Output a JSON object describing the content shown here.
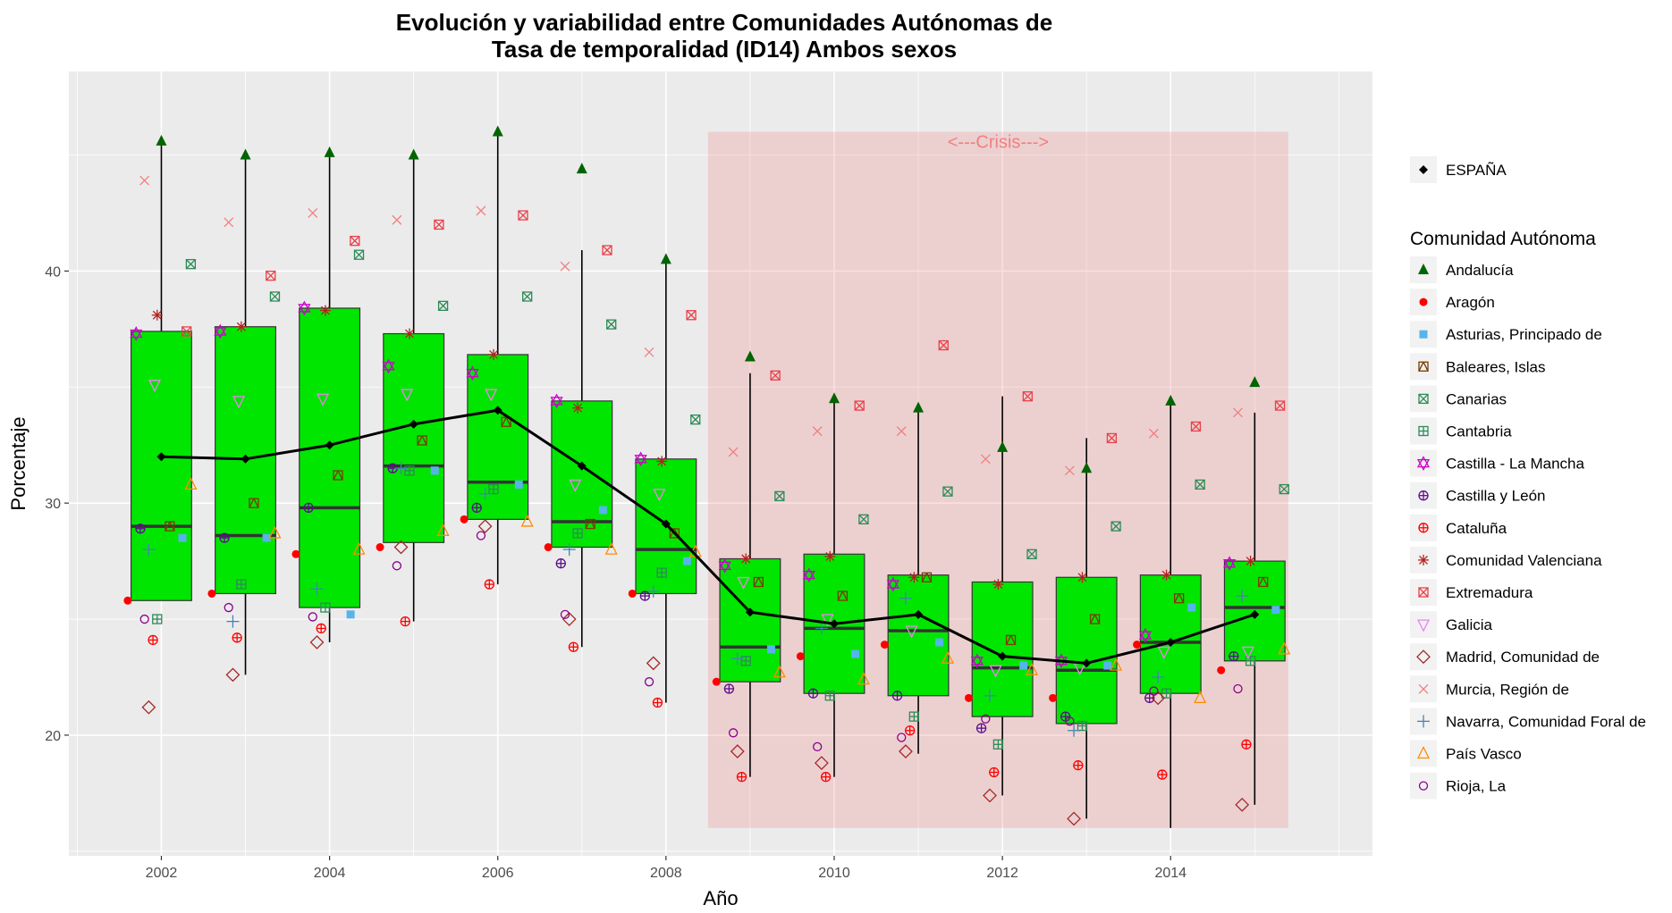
{
  "chart_data": {
    "type": "boxplot",
    "title_line1": "Evolución y variabilidad entre Comunidades Autónomas de",
    "title_line2": "Tasa de temporalidad (ID14) Ambos sexos",
    "xlabel": "Año",
    "ylabel": "Porcentaje",
    "xlim": [
      2000.9,
      2016.4
    ],
    "ylim": [
      14.8,
      48.6
    ],
    "x_ticks": [
      2002,
      2004,
      2006,
      2008,
      2010,
      2012,
      2014
    ],
    "y_ticks": [
      20,
      30,
      40
    ],
    "grid": true,
    "legend_position": "right",
    "crisis": {
      "label": "<---Crisis--->",
      "x_start": 2008.5,
      "x_end": 2015.4,
      "y_min": 16,
      "y_max": 46,
      "color": "#f08080"
    },
    "box_color": "#00e600",
    "boxes": [
      {
        "year": 2002,
        "whisker_low": 25.8,
        "q1": 25.8,
        "median": 29.0,
        "q3": 37.4,
        "whisker_high": 45.6
      },
      {
        "year": 2003,
        "whisker_low": 22.6,
        "q1": 26.1,
        "median": 28.6,
        "q3": 37.6,
        "whisker_high": 45.0
      },
      {
        "year": 2004,
        "whisker_low": 24.0,
        "q1": 25.5,
        "median": 29.8,
        "q3": 38.4,
        "whisker_high": 45.1
      },
      {
        "year": 2005,
        "whisker_low": 24.9,
        "q1": 28.3,
        "median": 31.6,
        "q3": 37.3,
        "whisker_high": 45.0
      },
      {
        "year": 2006,
        "whisker_low": 26.5,
        "q1": 29.3,
        "median": 30.9,
        "q3": 36.4,
        "whisker_high": 46.0
      },
      {
        "year": 2007,
        "whisker_low": 23.8,
        "q1": 28.1,
        "median": 29.2,
        "q3": 34.4,
        "whisker_high": 40.9
      },
      {
        "year": 2008,
        "whisker_low": 21.4,
        "q1": 26.1,
        "median": 28.0,
        "q3": 31.9,
        "whisker_high": 40.4
      },
      {
        "year": 2009,
        "whisker_low": 18.2,
        "q1": 22.3,
        "median": 23.8,
        "q3": 27.6,
        "whisker_high": 35.6
      },
      {
        "year": 2010,
        "whisker_low": 18.2,
        "q1": 21.8,
        "median": 24.6,
        "q3": 27.8,
        "whisker_high": 34.5
      },
      {
        "year": 2011,
        "whisker_low": 19.2,
        "q1": 21.7,
        "median": 24.5,
        "q3": 26.9,
        "whisker_high": 34.1
      },
      {
        "year": 2012,
        "whisker_low": 17.4,
        "q1": 20.8,
        "median": 22.9,
        "q3": 26.6,
        "whisker_high": 34.6
      },
      {
        "year": 2013,
        "whisker_low": 16.4,
        "q1": 20.5,
        "median": 22.8,
        "q3": 26.8,
        "whisker_high": 32.8
      },
      {
        "year": 2014,
        "whisker_low": 16.0,
        "q1": 21.8,
        "median": 24.0,
        "q3": 26.9,
        "whisker_high": 34.4
      },
      {
        "year": 2015,
        "whisker_low": 17.0,
        "q1": 23.2,
        "median": 25.5,
        "q3": 27.5,
        "whisker_high": 33.9
      }
    ],
    "espana": {
      "name": "ESPAÑA",
      "years": [
        2002,
        2003,
        2004,
        2005,
        2006,
        2007,
        2008,
        2009,
        2010,
        2011,
        2012,
        2013,
        2014,
        2015
      ],
      "values": [
        32.0,
        31.9,
        32.5,
        33.4,
        34.0,
        31.6,
        29.1,
        25.3,
        24.8,
        25.2,
        23.4,
        23.1,
        24.0,
        25.2
      ]
    },
    "legend_title": "Comunidad Autónoma",
    "years": [
      2002,
      2003,
      2004,
      2005,
      2006,
      2007,
      2008,
      2009,
      2010,
      2011,
      2012,
      2013,
      2014,
      2015
    ],
    "series": [
      {
        "name": "Andalucía",
        "shape": "triangle-filled",
        "color": "#006400",
        "offset": 0.0,
        "values": [
          45.6,
          45.0,
          45.1,
          45.0,
          46.0,
          44.4,
          40.5,
          36.3,
          34.5,
          34.1,
          32.4,
          31.5,
          34.4,
          35.2
        ]
      },
      {
        "name": "Aragón",
        "shape": "circle-filled",
        "color": "#ff0000",
        "offset": -0.4,
        "values": [
          25.8,
          26.1,
          27.8,
          28.1,
          29.3,
          28.1,
          26.1,
          22.3,
          23.4,
          23.9,
          21.6,
          21.6,
          23.9,
          22.8
        ]
      },
      {
        "name": "Asturias, Principado de",
        "shape": "square-filled",
        "color": "#56b4e9",
        "offset": 0.25,
        "values": [
          28.5,
          28.5,
          25.2,
          31.4,
          30.8,
          29.7,
          27.5,
          23.7,
          23.5,
          24.0,
          23.0,
          23.0,
          25.5,
          25.4
        ]
      },
      {
        "name": "Baleares, Islas",
        "shape": "square-cross",
        "color": "#7a3b00",
        "offset": 0.1,
        "values": [
          29.0,
          30.0,
          31.2,
          32.7,
          33.5,
          29.1,
          28.7,
          26.6,
          26.0,
          26.8,
          24.1,
          25.0,
          25.9,
          26.6
        ]
      },
      {
        "name": "Canarias",
        "shape": "square-x",
        "color": "#2e8b57",
        "offset": 0.35,
        "values": [
          40.3,
          38.9,
          40.7,
          38.5,
          38.9,
          37.7,
          33.6,
          30.3,
          29.3,
          30.5,
          27.8,
          29.0,
          30.8,
          30.6
        ]
      },
      {
        "name": "Cantabria",
        "shape": "square-plus",
        "color": "#2e8b57",
        "offset": -0.05,
        "values": [
          25.0,
          26.5,
          25.5,
          31.4,
          30.6,
          28.7,
          27.0,
          23.2,
          21.7,
          20.8,
          19.6,
          20.4,
          21.8,
          23.2
        ]
      },
      {
        "name": "Castilla - La Mancha",
        "shape": "star-david",
        "color": "#cc00cc",
        "offset": -0.3,
        "values": [
          37.3,
          37.4,
          38.4,
          35.9,
          35.6,
          34.4,
          31.9,
          27.3,
          26.9,
          26.5,
          23.2,
          23.2,
          24.3,
          27.4
        ]
      },
      {
        "name": "Castilla y León",
        "shape": "circle-plus",
        "color": "#5a0f8a",
        "offset": -0.25,
        "values": [
          28.9,
          28.5,
          29.8,
          31.5,
          29.8,
          27.4,
          26.0,
          22.0,
          21.8,
          21.7,
          20.3,
          20.8,
          21.6,
          23.4
        ]
      },
      {
        "name": "Cataluña",
        "shape": "circle-plus",
        "color": "#ff0000",
        "offset": -0.1,
        "values": [
          24.1,
          24.2,
          24.6,
          24.9,
          26.5,
          23.8,
          21.4,
          18.2,
          18.2,
          20.2,
          18.4,
          18.7,
          18.3,
          19.6
        ]
      },
      {
        "name": "Comunidad Valenciana",
        "shape": "asterisk",
        "color": "#b22222",
        "offset": -0.05,
        "values": [
          38.1,
          37.6,
          38.3,
          37.3,
          36.4,
          34.1,
          31.8,
          27.6,
          27.7,
          26.8,
          26.5,
          26.8,
          26.9,
          27.5
        ]
      },
      {
        "name": "Extremadura",
        "shape": "square-x",
        "color": "#e8414a",
        "offset": 0.3,
        "values": [
          37.4,
          39.8,
          41.3,
          42.0,
          42.4,
          40.9,
          38.1,
          35.5,
          34.2,
          36.8,
          34.6,
          32.8,
          33.3,
          34.2
        ]
      },
      {
        "name": "Galicia",
        "shape": "triangle-down",
        "color": "#ee82ee",
        "offset": -0.08,
        "values": [
          35.1,
          34.4,
          34.5,
          34.7,
          34.7,
          30.8,
          30.4,
          26.6,
          25.0,
          24.5,
          22.8,
          22.9,
          23.6,
          23.6
        ]
      },
      {
        "name": "Madrid, Comunidad de",
        "shape": "diamond",
        "color": "#a52a2a",
        "offset": -0.15,
        "values": [
          21.2,
          22.6,
          24.0,
          28.1,
          29.0,
          25.0,
          23.1,
          19.3,
          18.8,
          19.3,
          17.4,
          16.4,
          21.6,
          17.0
        ]
      },
      {
        "name": "Murcia, Región de",
        "shape": "x",
        "color": "#f08080",
        "offset": -0.2,
        "values": [
          43.9,
          42.1,
          42.5,
          42.2,
          42.6,
          40.2,
          36.5,
          32.2,
          33.1,
          33.1,
          31.9,
          31.4,
          33.0,
          33.9
        ]
      },
      {
        "name": "Navarra, Comunidad Foral de",
        "shape": "plus",
        "color": "#4682b4",
        "offset": -0.15,
        "values": [
          28.0,
          24.9,
          26.3,
          31.5,
          30.4,
          28.0,
          26.2,
          23.3,
          24.6,
          25.9,
          21.7,
          20.2,
          22.5,
          26.0
        ]
      },
      {
        "name": "País Vasco",
        "shape": "triangle-open",
        "color": "#ff8c00",
        "offset": 0.35,
        "values": [
          30.8,
          28.7,
          28.0,
          28.8,
          29.2,
          28.0,
          27.9,
          22.7,
          22.4,
          23.3,
          22.8,
          23.0,
          21.6,
          23.7
        ]
      },
      {
        "name": "Rioja, La",
        "shape": "circle-open",
        "color": "#8b008b",
        "offset": -0.2,
        "values": [
          25.0,
          25.5,
          25.1,
          27.3,
          28.6,
          25.2,
          22.3,
          20.1,
          19.5,
          19.9,
          20.7,
          20.6,
          21.9,
          22.0
        ]
      }
    ]
  }
}
